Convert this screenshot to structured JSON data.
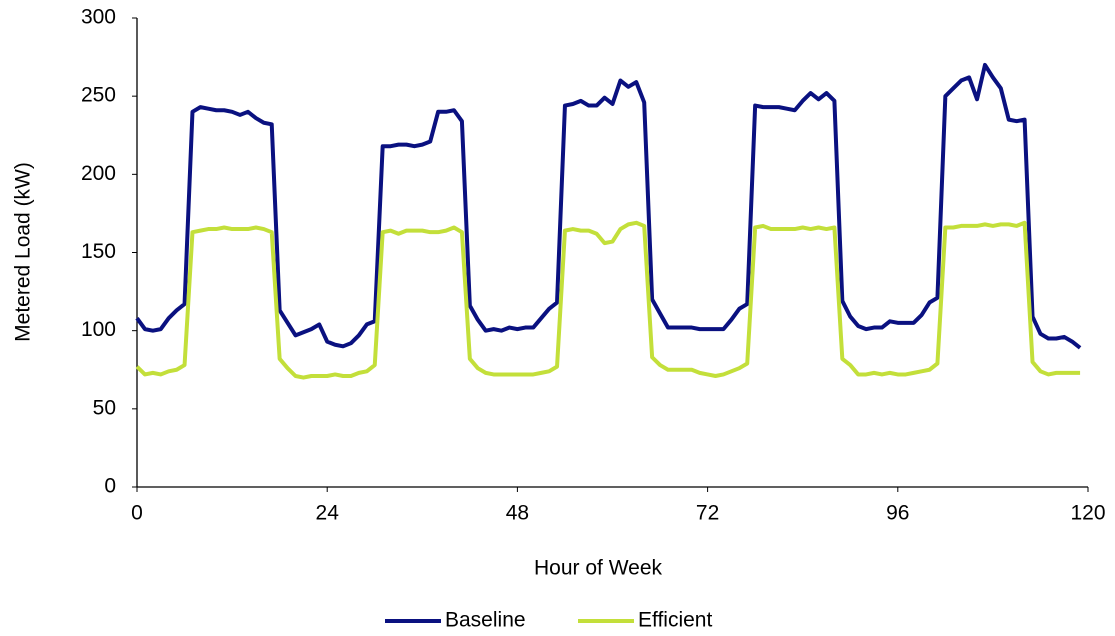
{
  "chart_data": {
    "type": "line",
    "x_label": "Hour of Week",
    "y_label": "Metered Load (kW)",
    "x": [
      0,
      1,
      2,
      3,
      4,
      5,
      6,
      7,
      8,
      9,
      10,
      11,
      12,
      13,
      14,
      15,
      16,
      17,
      18,
      19,
      20,
      21,
      22,
      23,
      24,
      25,
      26,
      27,
      28,
      29,
      30,
      31,
      32,
      33,
      34,
      35,
      36,
      37,
      38,
      39,
      40,
      41,
      42,
      43,
      44,
      45,
      46,
      47,
      48,
      49,
      50,
      51,
      52,
      53,
      54,
      55,
      56,
      57,
      58,
      59,
      60,
      61,
      62,
      63,
      64,
      65,
      66,
      67,
      68,
      69,
      70,
      71,
      72,
      73,
      74,
      75,
      76,
      77,
      78,
      79,
      80,
      81,
      82,
      83,
      84,
      85,
      86,
      87,
      88,
      89,
      90,
      91,
      92,
      93,
      94,
      95,
      96,
      97,
      98,
      99,
      100,
      101,
      102,
      103,
      104,
      105,
      106,
      107,
      108,
      109,
      110,
      111,
      112,
      113,
      114,
      115,
      116,
      117,
      118,
      119
    ],
    "series": [
      {
        "name": "Baseline",
        "color": "#0a1180",
        "values": [
          108,
          101,
          100,
          101,
          108,
          113,
          117,
          240,
          243,
          242,
          241,
          241,
          240,
          238,
          240,
          236,
          233,
          232,
          113,
          105,
          97,
          99,
          101,
          104,
          93,
          91,
          90,
          92,
          97,
          104,
          106,
          218,
          218,
          219,
          219,
          218,
          219,
          221,
          240,
          240,
          241,
          234,
          116,
          107,
          100,
          101,
          100,
          102,
          101,
          102,
          102,
          108,
          114,
          118,
          244,
          245,
          247,
          244,
          244,
          249,
          245,
          260,
          256,
          259,
          246,
          120,
          111,
          102,
          102,
          102,
          102,
          101,
          101,
          101,
          101,
          107,
          114,
          117,
          244,
          243,
          243,
          243,
          242,
          241,
          247,
          252,
          248,
          252,
          247,
          119,
          109,
          103,
          101,
          102,
          102,
          106,
          105,
          105,
          105,
          110,
          118,
          121,
          250,
          255,
          260,
          262,
          248,
          270,
          262,
          255,
          235,
          234,
          235,
          109,
          98,
          95,
          95,
          96,
          93,
          89
        ]
      },
      {
        "name": "Efficient",
        "color": "#c3df3a",
        "values": [
          77,
          72,
          73,
          72,
          74,
          75,
          78,
          163,
          164,
          165,
          165,
          166,
          165,
          165,
          165,
          166,
          165,
          163,
          82,
          76,
          71,
          70,
          71,
          71,
          71,
          72,
          71,
          71,
          73,
          74,
          78,
          163,
          164,
          162,
          164,
          164,
          164,
          163,
          163,
          164,
          166,
          163,
          82,
          76,
          73,
          72,
          72,
          72,
          72,
          72,
          72,
          73,
          74,
          77,
          164,
          165,
          164,
          164,
          162,
          156,
          157,
          165,
          168,
          169,
          167,
          83,
          78,
          75,
          75,
          75,
          75,
          73,
          72,
          71,
          72,
          74,
          76,
          79,
          166,
          167,
          165,
          165,
          165,
          165,
          166,
          165,
          166,
          165,
          166,
          82,
          78,
          72,
          72,
          73,
          72,
          73,
          72,
          72,
          73,
          74,
          75,
          79,
          166,
          166,
          167,
          167,
          167,
          168,
          167,
          168,
          168,
          167,
          169,
          80,
          74,
          72,
          73,
          73,
          73,
          73
        ]
      }
    ],
    "xlim": [
      0,
      120
    ],
    "xticks": [
      0,
      24,
      48,
      72,
      96,
      120
    ],
    "ylim": [
      0,
      300
    ],
    "yticks": [
      0,
      50,
      100,
      150,
      200,
      250,
      300
    ],
    "grid": false,
    "legend": "bottom"
  }
}
